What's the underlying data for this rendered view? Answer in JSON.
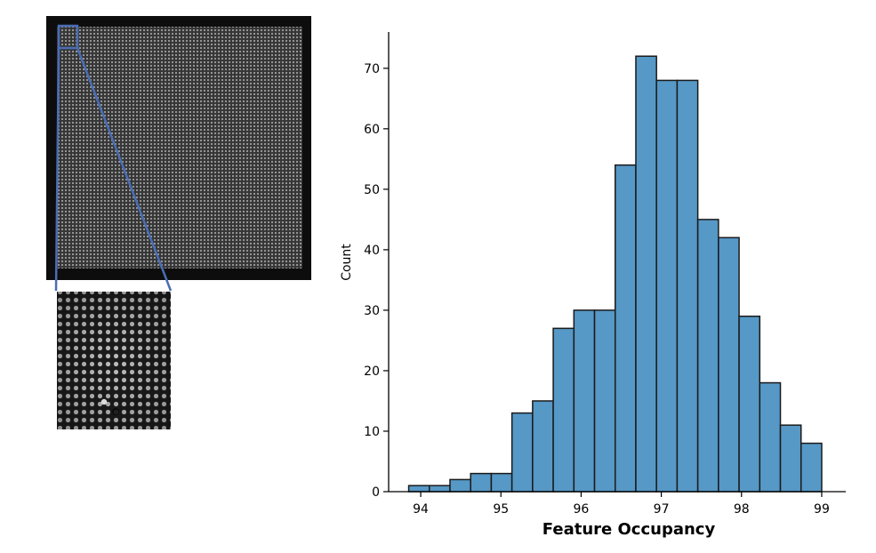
{
  "images": [
    {
      "name": "flow-cell-overview",
      "kind": "microscopy-image",
      "dominant_color": "#0d0d0d",
      "feature_color": "#cfcfcf"
    },
    {
      "name": "flow-cell-inset",
      "kind": "microscopy-image-zoom",
      "dominant_color": "#1a1a1a",
      "feature_color": "#e0e0e0"
    }
  ],
  "callout_color": "#4a6db5",
  "chart_data": {
    "type": "bar",
    "title": "",
    "xlabel": "Feature Occupancy",
    "ylabel": "Count",
    "xlim": [
      93.6,
      99.3
    ],
    "ylim": [
      0,
      76
    ],
    "xticks": [
      94,
      95,
      96,
      97,
      98,
      99
    ],
    "yticks": [
      0,
      10,
      20,
      30,
      40,
      50,
      60,
      70
    ],
    "bin_start": 93.85,
    "bin_width": 0.2575,
    "values": [
      1,
      1,
      2,
      3,
      3,
      13,
      15,
      27,
      30,
      30,
      54,
      72,
      68,
      68,
      45,
      42,
      29,
      18,
      11,
      8
    ],
    "bar_color": "#5698c6",
    "edge_color": "#1a1a1a",
    "grid": false,
    "legend": false
  }
}
